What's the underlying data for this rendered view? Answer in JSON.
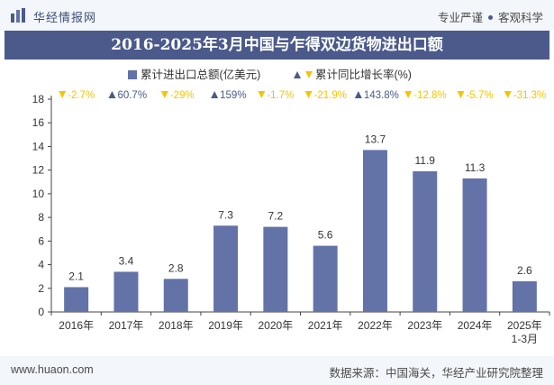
{
  "header": {
    "brand_name": "华经情报网",
    "slogan_left": "专业严谨",
    "slogan_right": "客观科学"
  },
  "chart_data": {
    "type": "bar",
    "title": "2016-2025年3月中国与乍得双边货物进出口额",
    "categories": [
      "2016年",
      "2017年",
      "2018年",
      "2019年",
      "2020年",
      "2021年",
      "2022年",
      "2023年",
      "2024年",
      "2025年\n1-3月"
    ],
    "series": [
      {
        "name": "累计进出口总额(亿美元)",
        "values": [
          2.1,
          3.4,
          2.8,
          7.3,
          7.2,
          5.6,
          13.7,
          11.9,
          11.3,
          2.6
        ],
        "color": "#6373a8"
      },
      {
        "name": "累计同比增长率(%)",
        "values": [
          -2.7,
          60.7,
          -29,
          159,
          -1.7,
          -21.9,
          143.8,
          -12.8,
          -5.7,
          -31.3
        ],
        "labels": [
          "-2.7%",
          "60.7%",
          "-29%",
          "159%",
          "-1.7%",
          "-21.9%",
          "143.8%",
          "-12.8%",
          "-5.7%",
          "-31.3%"
        ],
        "up_color": "#4a5a8a",
        "down_color": "#f5c400"
      }
    ],
    "ylim": [
      0,
      18
    ],
    "yticks": [
      0,
      2,
      4,
      6,
      8,
      10,
      12,
      14,
      16,
      18
    ],
    "grid": false,
    "legend_position": "top-center"
  },
  "footer": {
    "url": "www.huaon.com",
    "source": "数据来源：中国海关，华经产业研究院整理"
  }
}
